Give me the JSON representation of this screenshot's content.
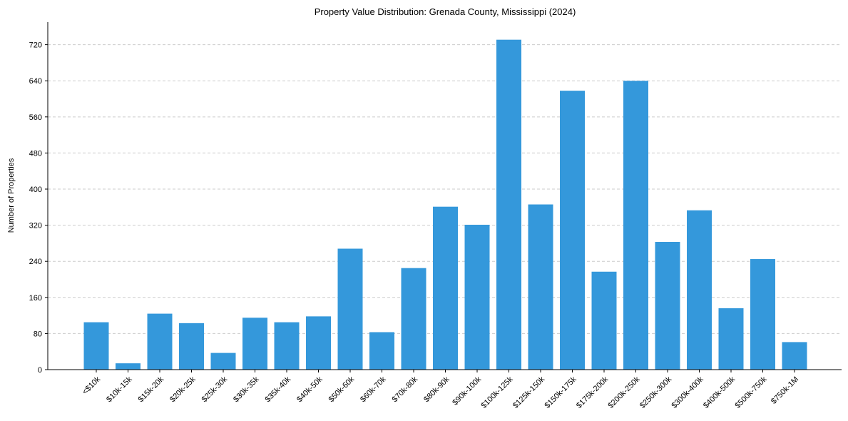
{
  "chart_data": {
    "type": "bar",
    "title": "Property Value Distribution: Grenada County, Mississippi (2024)",
    "xlabel": "",
    "ylabel": "Number of Properties",
    "ylim": [
      0,
      770
    ],
    "yticks": [
      0,
      80,
      160,
      240,
      320,
      400,
      480,
      560,
      640,
      720
    ],
    "grid": "y-dashed",
    "color": "#3498db",
    "categories": [
      "<$10k",
      "$10k-15k",
      "$15k-20k",
      "$20k-25k",
      "$25k-30k",
      "$30k-35k",
      "$35k-40k",
      "$40k-50k",
      "$50k-60k",
      "$60k-70k",
      "$70k-80k",
      "$80k-90k",
      "$90k-100k",
      "$100k-125k",
      "$125k-150k",
      "$150k-175k",
      "$175k-200k",
      "$200k-250k",
      "$250k-300k",
      "$300k-400k",
      "$400k-500k",
      "$500k-750k",
      "$750k-1M"
    ],
    "values": [
      105,
      14,
      124,
      103,
      37,
      115,
      105,
      118,
      268,
      83,
      225,
      361,
      321,
      731,
      366,
      618,
      217,
      640,
      283,
      353,
      136,
      245,
      61
    ]
  }
}
